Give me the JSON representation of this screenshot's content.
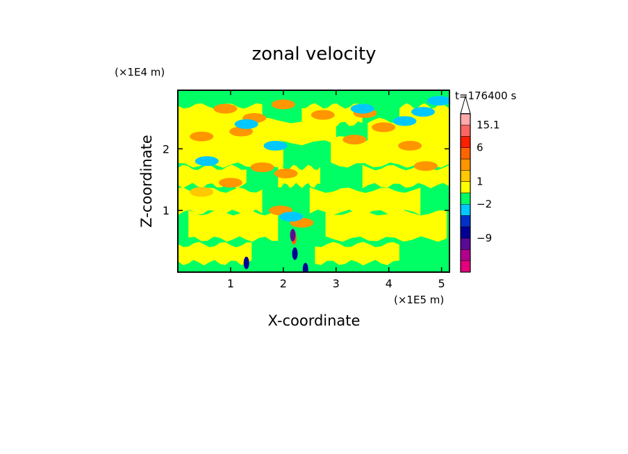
{
  "chart_data": {
    "type": "heatmap",
    "title": "zonal velocity",
    "xlabel": "X-coordinate",
    "ylabel": "Z-coordinate",
    "x_unit": "(×1E5 m)",
    "y_unit": "(×1E4 m)",
    "annotation": "t=176400 s",
    "xlim": [
      0,
      5.15
    ],
    "ylim": [
      0,
      2.95
    ],
    "x_ticks": [
      {
        "value": 1,
        "label": "1"
      },
      {
        "value": 2,
        "label": "2"
      },
      {
        "value": 3,
        "label": "3"
      },
      {
        "value": 4,
        "label": "4"
      },
      {
        "value": 5,
        "label": "5"
      }
    ],
    "y_ticks": [
      {
        "value": 1,
        "label": "1"
      },
      {
        "value": 2,
        "label": "2"
      }
    ],
    "colorbar": {
      "levels": [
        {
          "color": "#e6007e"
        },
        {
          "color": "#b0008c"
        },
        {
          "color": "#5a0a96"
        },
        {
          "color": "#000096"
        },
        {
          "color": "#0032c8"
        },
        {
          "color": "#00c8ff"
        },
        {
          "color": "#00ff64"
        },
        {
          "color": "#ffff00"
        },
        {
          "color": "#ffc800"
        },
        {
          "color": "#ff9600"
        },
        {
          "color": "#ff6400"
        },
        {
          "color": "#ff1e00"
        },
        {
          "color": "#ff6464"
        },
        {
          "color": "#ffaaaa"
        }
      ],
      "labels": [
        {
          "text": "15.1",
          "level_boundary": 13
        },
        {
          "text": "6",
          "level_boundary": 11
        },
        {
          "text": "1",
          "level_boundary": 8
        },
        {
          "text": "−2",
          "level_boundary": 6
        },
        {
          "text": "−9",
          "level_boundary": 3
        }
      ],
      "extend_top": true
    },
    "field": {
      "background_color": "#00ff64",
      "bands": [
        {
          "z": 2.55,
          "ranges": [
            [
              0.0,
              1.6
            ],
            [
              2.35,
              3.5
            ],
            [
              4.2,
              5.15
            ]
          ],
          "color": "#ffff00"
        },
        {
          "z": 2.28,
          "ranges": [
            [
              0.0,
              3.0
            ],
            [
              3.6,
              5.15
            ]
          ],
          "color": "#ffff00"
        },
        {
          "z": 1.95,
          "ranges": [
            [
              0.0,
              2.0
            ],
            [
              2.9,
              5.15
            ]
          ],
          "color": "#ffff00"
        },
        {
          "z": 1.55,
          "ranges": [
            [
              0.0,
              1.3
            ],
            [
              1.9,
              2.7
            ],
            [
              3.5,
              5.15
            ]
          ],
          "color": "#ffff00"
        },
        {
          "z": 1.15,
          "ranges": [
            [
              0.0,
              1.6
            ],
            [
              2.5,
              4.6
            ]
          ],
          "color": "#ffff00"
        },
        {
          "z": 0.75,
          "ranges": [
            [
              0.2,
              1.9
            ],
            [
              2.8,
              5.1
            ]
          ],
          "color": "#ffff00"
        },
        {
          "z": 0.3,
          "ranges": [
            [
              0.0,
              1.4
            ],
            [
              2.6,
              4.2
            ]
          ],
          "color": "#ffff00"
        }
      ],
      "blobs": [
        {
          "x": 0.9,
          "z": 2.65,
          "v": 3
        },
        {
          "x": 2.0,
          "z": 2.72,
          "v": 3
        },
        {
          "x": 3.55,
          "z": 2.58,
          "v": 3
        },
        {
          "x": 0.45,
          "z": 2.2,
          "v": 3
        },
        {
          "x": 1.2,
          "z": 2.28,
          "v": 3
        },
        {
          "x": 2.05,
          "z": 1.6,
          "v": 5
        },
        {
          "x": 1.0,
          "z": 1.45,
          "v": 3
        },
        {
          "x": 4.4,
          "z": 2.05,
          "v": 3
        },
        {
          "x": 4.7,
          "z": 1.72,
          "v": 3
        },
        {
          "x": 2.75,
          "z": 2.55,
          "v": 3
        },
        {
          "x": 3.9,
          "z": 2.35,
          "v": 3
        },
        {
          "x": 1.45,
          "z": 2.5,
          "v": 3
        },
        {
          "x": 1.6,
          "z": 1.7,
          "v": 3
        },
        {
          "x": 3.35,
          "z": 2.15,
          "v": 3
        },
        {
          "x": 2.2,
          "z": 0.55,
          "v": 6
        },
        {
          "x": 2.35,
          "z": 0.8,
          "v": 5
        },
        {
          "x": 1.95,
          "z": 1.0,
          "v": 5
        },
        {
          "x": 0.45,
          "z": 1.3,
          "v": 2
        },
        {
          "x": 3.5,
          "z": 2.65,
          "v": -3
        },
        {
          "x": 4.65,
          "z": 2.6,
          "v": -3
        },
        {
          "x": 1.3,
          "z": 2.4,
          "v": -3
        },
        {
          "x": 0.55,
          "z": 1.8,
          "v": -3
        },
        {
          "x": 1.85,
          "z": 2.05,
          "v": -3
        },
        {
          "x": 4.95,
          "z": 2.78,
          "v": -3
        },
        {
          "x": 4.3,
          "z": 2.45,
          "v": -3
        },
        {
          "x": 2.18,
          "z": 0.6,
          "v": -12
        },
        {
          "x": 2.22,
          "z": 0.3,
          "v": -8
        },
        {
          "x": 1.3,
          "z": 0.15,
          "v": -8
        },
        {
          "x": 2.42,
          "z": 0.05,
          "v": -8
        },
        {
          "x": 2.15,
          "z": 0.9,
          "v": -4
        }
      ]
    }
  }
}
